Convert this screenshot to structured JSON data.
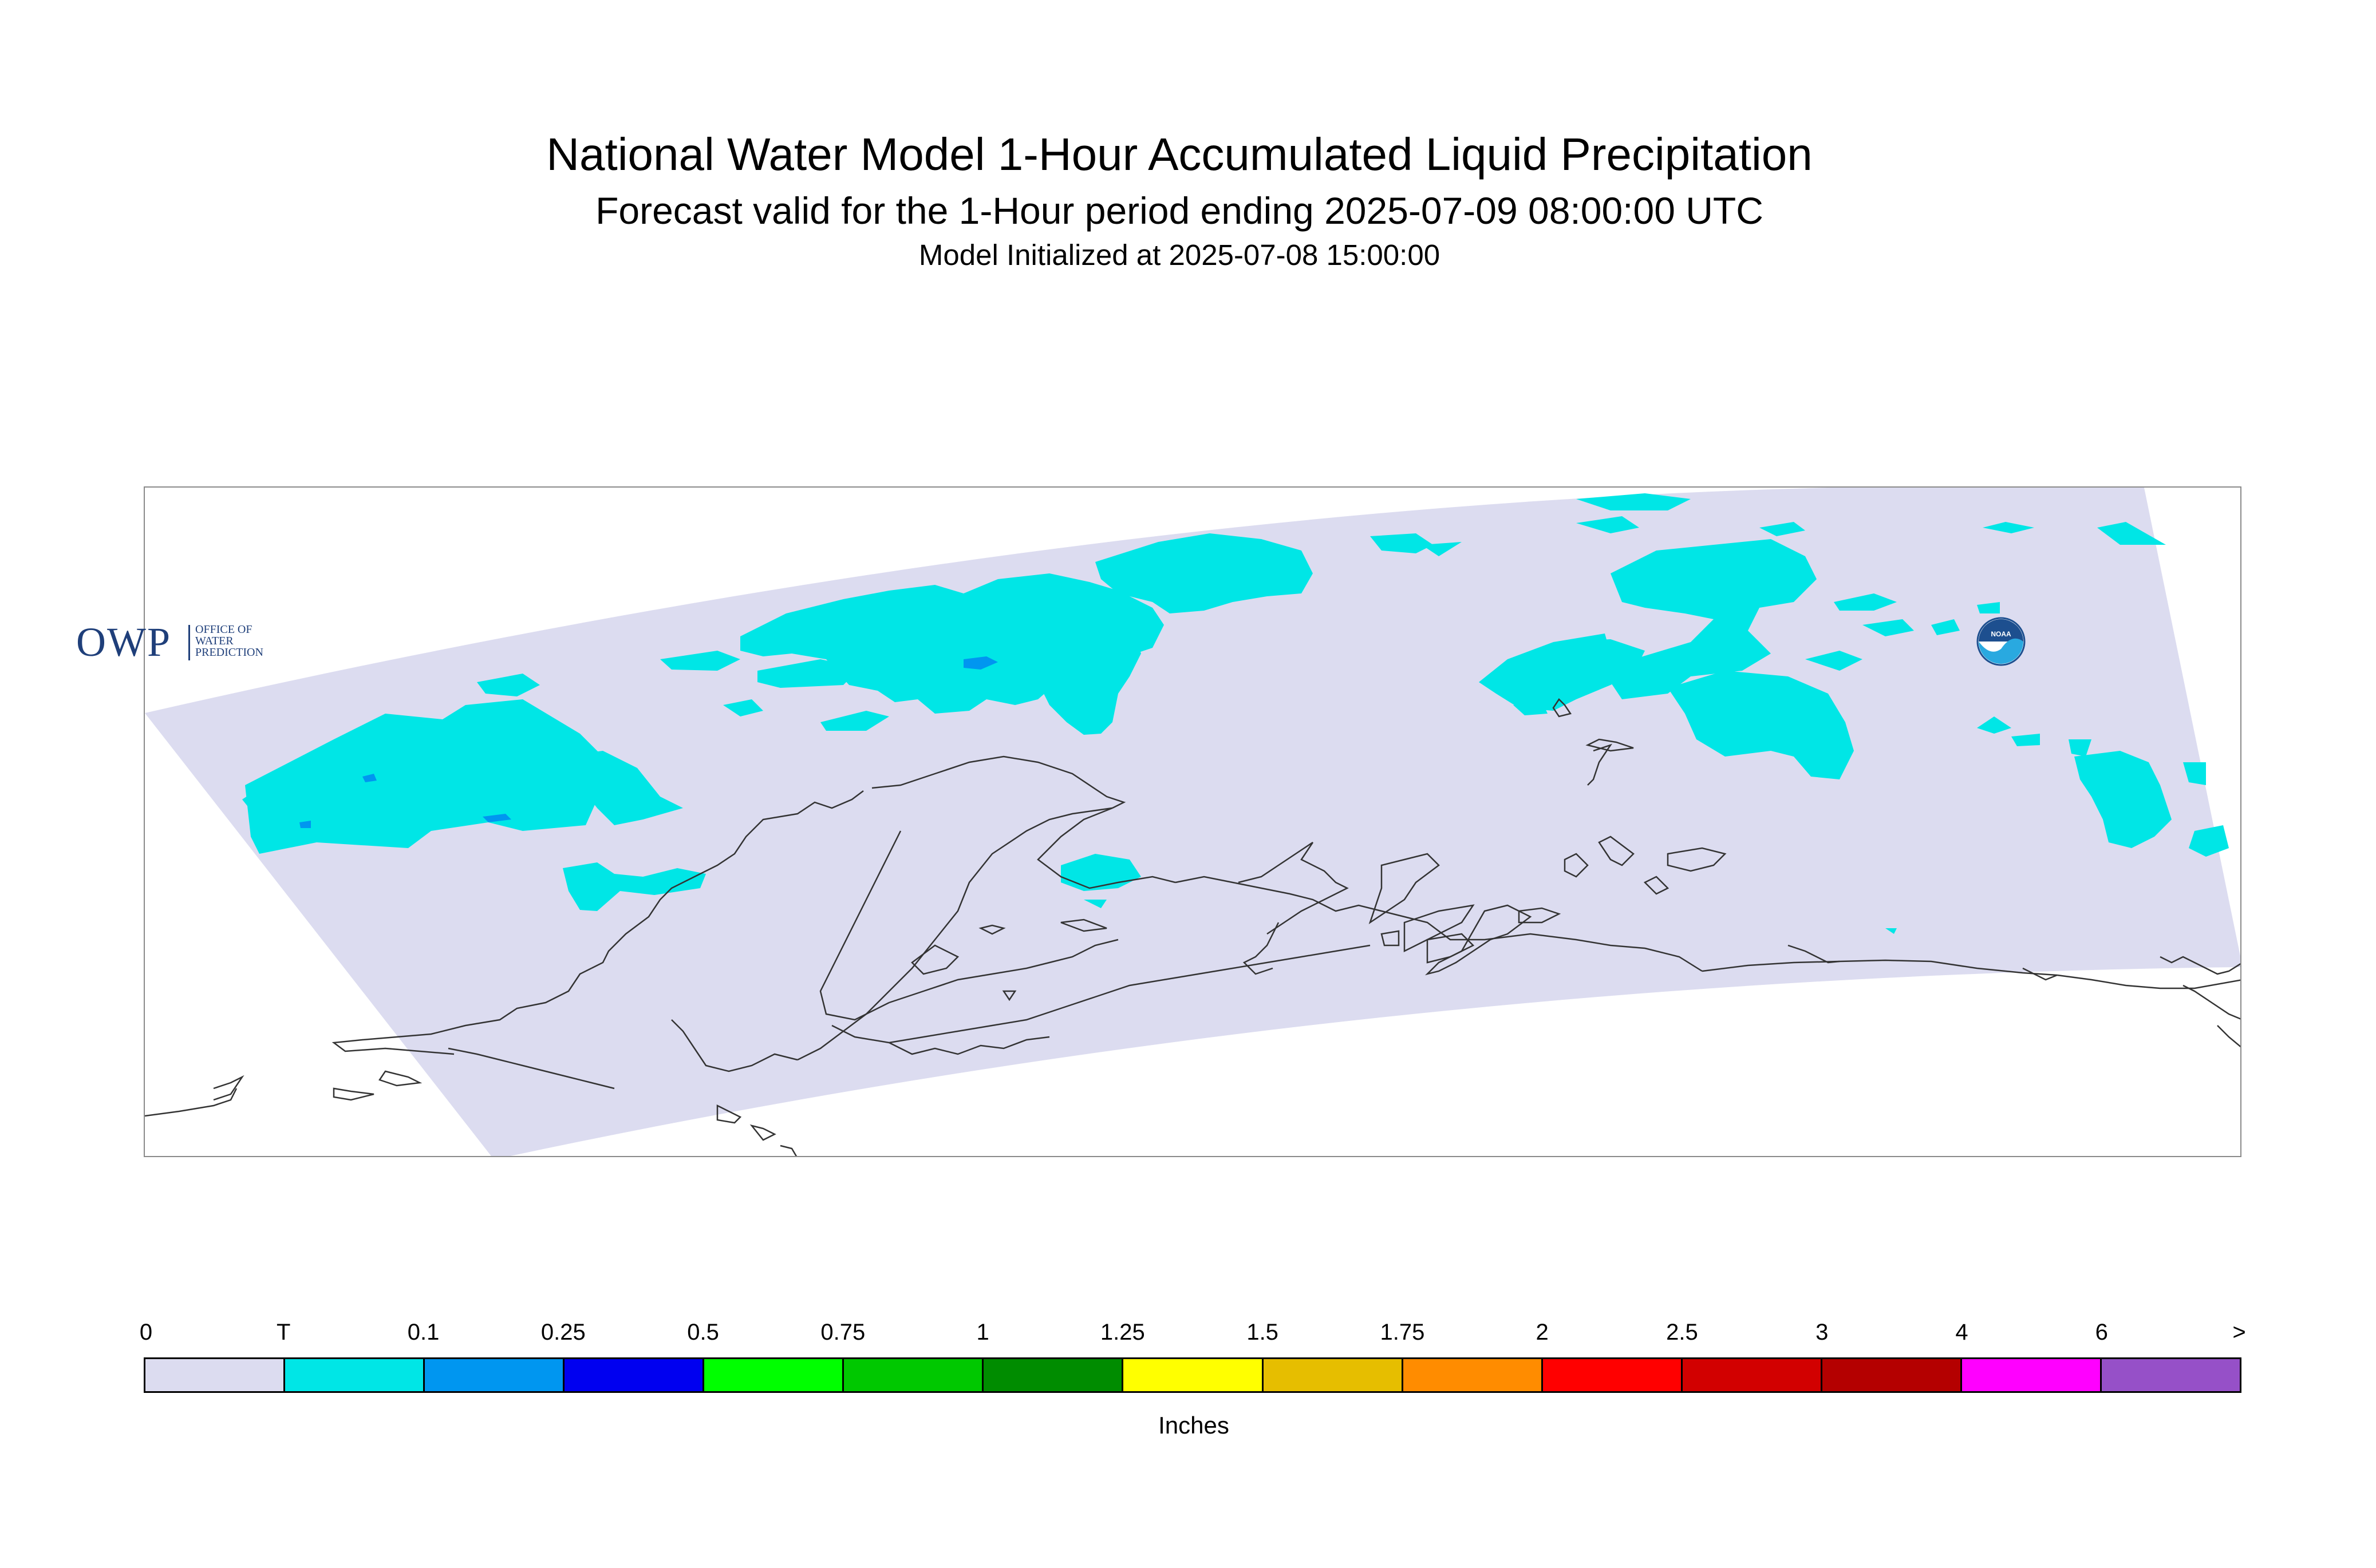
{
  "header": {
    "title": "National Water Model 1-Hour Accumulated Liquid Precipitation",
    "subtitle": "Forecast valid for the 1-Hour period ending 2025-07-09 08:00:00 UTC",
    "init_line": "Model Initialized at 2025-07-08 15:00:00"
  },
  "logos": {
    "owp_letters": "OWP",
    "owp_text": [
      "OFFICE OF",
      "WATER",
      "PREDICTION"
    ],
    "noaa_text": "NOAA"
  },
  "legend": {
    "unit_label": "Inches",
    "tick_labels": [
      "0",
      "T",
      "0.1",
      "0.25",
      "0.5",
      "0.75",
      "1",
      "1.25",
      "1.5",
      "1.75",
      "2",
      "2.5",
      "3",
      "4",
      "6",
      ">"
    ],
    "bins": [
      {
        "color": "#dcdcf0"
      },
      {
        "color": "#00e6e6"
      },
      {
        "color": "#0096f0"
      },
      {
        "color": "#0000f0"
      },
      {
        "color": "#00ff00"
      },
      {
        "color": "#00c800"
      },
      {
        "color": "#008c00"
      },
      {
        "color": "#ffff00"
      },
      {
        "color": "#e6be00"
      },
      {
        "color": "#ff8c00"
      },
      {
        "color": "#ff0000"
      },
      {
        "color": "#d20000"
      },
      {
        "color": "#b40000"
      },
      {
        "color": "#ff00ff"
      },
      {
        "color": "#9650c8"
      }
    ]
  },
  "map": {
    "domain_fill": "#dcdcf0",
    "trace_color": "#00e6e6",
    "light_color": "#0096f0",
    "coast_color": "#333333"
  }
}
